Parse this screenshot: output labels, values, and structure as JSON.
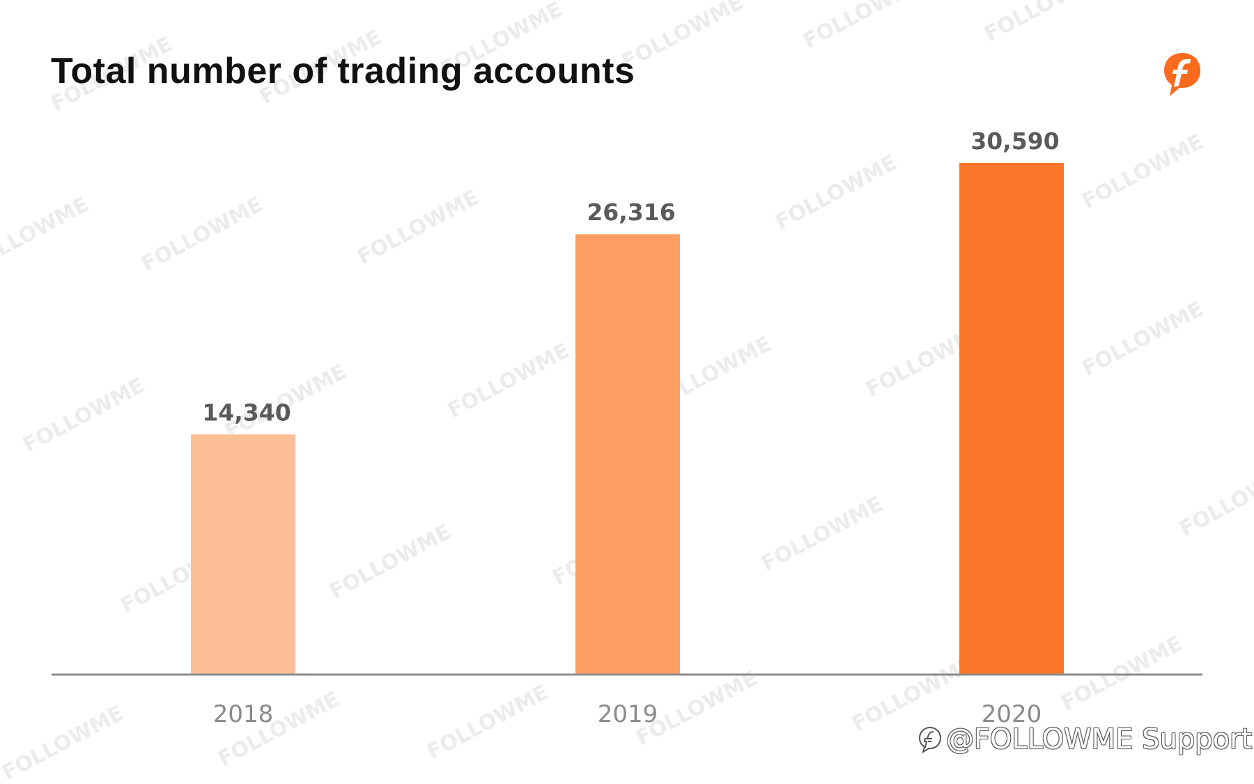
{
  "chart_data": {
    "type": "bar",
    "title": "Total number of trading accounts",
    "categories": [
      "2018",
      "2019",
      "2020"
    ],
    "values": [
      14340,
      26316,
      30590
    ],
    "value_labels": [
      "14,340",
      "26,316",
      "30,590"
    ],
    "bar_colors": [
      "#FDBF98",
      "#FD9E63",
      "#FC7729"
    ],
    "ylim": [
      0,
      32000
    ],
    "xlabel": "",
    "ylabel": "",
    "grid": false,
    "legend": "none"
  },
  "watermark": {
    "text": "FOLLOWME"
  },
  "footer": {
    "credit": "@FOLLOWME Support"
  },
  "logo": {
    "icon": "followme-f-logo-icon",
    "color": "#FC6A1E"
  },
  "colors": {
    "axis": "#8c8c8c"
  }
}
